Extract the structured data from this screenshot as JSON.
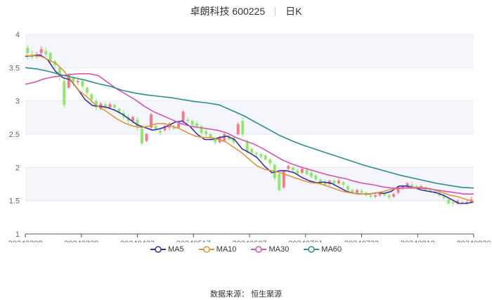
{
  "header": {
    "title": "卓朗科技 600225",
    "period": "日K"
  },
  "source": "数据来源： 恒生聚源",
  "colors": {
    "up": "#f47a85",
    "down": "#8ee86a",
    "ma5": "#3a2fa6",
    "ma10": "#e1933a",
    "ma30": "#d455b2",
    "ma60": "#2f8e8b",
    "grid": "#e6e9f2",
    "band": "#f4f6fb",
    "axis": "#666666"
  },
  "chart_data": {
    "type": "candlestick",
    "y_ticks": [
      "1",
      "1.5",
      "2",
      "2.5",
      "3",
      "3.5",
      "4"
    ],
    "ylim": [
      1,
      4
    ],
    "x_ticks": [
      "20240308",
      "20240329",
      "20240423",
      "20240517",
      "20240607",
      "20240701",
      "20240722",
      "20240812",
      "20240830"
    ],
    "grid": true,
    "legend_placement": "bottom",
    "series": [
      {
        "name": "MA5",
        "values": [
          3.67,
          3.68,
          3.69,
          3.62,
          3.45,
          3.35,
          3.32,
          3.18,
          3.02,
          2.93,
          2.92,
          2.9,
          2.86,
          2.8,
          2.72,
          2.64,
          2.6,
          2.56,
          2.58,
          2.62,
          2.68,
          2.7,
          2.62,
          2.5,
          2.42,
          2.42,
          2.45,
          2.47,
          2.42,
          2.28,
          2.22,
          2.15,
          2.02,
          1.92,
          1.95,
          1.95,
          1.92,
          1.85,
          1.8,
          1.77,
          1.78,
          1.76,
          1.7,
          1.64,
          1.61,
          1.6,
          1.6,
          1.62,
          1.61,
          1.64,
          1.72,
          1.72,
          1.7,
          1.66,
          1.64,
          1.62,
          1.58,
          1.52,
          1.46,
          1.46,
          1.48
        ]
      },
      {
        "name": "MA10",
        "values": [
          3.68,
          3.68,
          3.67,
          3.62,
          3.56,
          3.45,
          3.3,
          3.15,
          3.06,
          2.95,
          2.88,
          2.8,
          2.72,
          2.66,
          2.62,
          2.6,
          2.62,
          2.66,
          2.66,
          2.62,
          2.58,
          2.52,
          2.47,
          2.45,
          2.45,
          2.42,
          2.38,
          2.3,
          2.22,
          2.12,
          2.02,
          1.97,
          1.95,
          1.92,
          1.88,
          1.84,
          1.8,
          1.77,
          1.76,
          1.72,
          1.68,
          1.64,
          1.62,
          1.6,
          1.6,
          1.61,
          1.63,
          1.66,
          1.68,
          1.69,
          1.7,
          1.7,
          1.69,
          1.66,
          1.62,
          1.58,
          1.56,
          1.52,
          1.48
        ]
      },
      {
        "name": "MA30",
        "values": [
          3.25,
          3.28,
          3.33,
          3.36,
          3.38,
          3.4,
          3.41,
          3.41,
          3.38,
          3.28,
          3.18,
          3.1,
          3.02,
          2.92,
          2.84,
          2.78,
          2.72,
          2.66,
          2.62,
          2.6,
          2.58,
          2.56,
          2.52,
          2.45,
          2.4,
          2.35,
          2.28,
          2.2,
          2.12,
          2.06,
          2.01,
          1.97,
          1.93,
          1.89,
          1.86,
          1.83,
          1.79,
          1.76,
          1.74,
          1.71,
          1.69,
          1.69,
          1.69,
          1.69,
          1.68,
          1.66,
          1.64,
          1.62,
          1.6,
          1.6
        ]
      },
      {
        "name": "MA60",
        "values": [
          3.5,
          3.48,
          3.44,
          3.39,
          3.35,
          3.31,
          3.26,
          3.22,
          3.16,
          3.12,
          3.09,
          3.07,
          3.05,
          3.02,
          2.99,
          2.97,
          2.94,
          2.86,
          2.78,
          2.68,
          2.58,
          2.48,
          2.4,
          2.33,
          2.27,
          2.21,
          2.15,
          2.09,
          2.03,
          1.98,
          1.93,
          1.88,
          1.84,
          1.8,
          1.76,
          1.73,
          1.7,
          1.69
        ]
      }
    ],
    "candles": [
      [
        3.8,
        3.72,
        3.84,
        3.62
      ],
      [
        3.7,
        3.66,
        3.76,
        3.62
      ],
      [
        3.68,
        3.7,
        3.74,
        3.64
      ],
      [
        3.72,
        3.78,
        3.82,
        3.66
      ],
      [
        3.75,
        3.7,
        3.8,
        3.66
      ],
      [
        3.72,
        3.62,
        3.74,
        3.58
      ],
      [
        3.6,
        3.54,
        3.62,
        3.48
      ],
      [
        3.5,
        3.36,
        3.52,
        3.3
      ],
      [
        3.3,
        2.94,
        3.34,
        2.9
      ],
      [
        3.2,
        3.4,
        3.42,
        3.18
      ],
      [
        3.35,
        3.28,
        3.38,
        3.22
      ],
      [
        3.28,
        3.3,
        3.34,
        3.24
      ],
      [
        3.3,
        3.22,
        3.34,
        3.18
      ],
      [
        3.2,
        3.12,
        3.22,
        3.08
      ],
      [
        3.1,
        3.02,
        3.12,
        2.98
      ],
      [
        3.0,
        2.9,
        3.04,
        2.86
      ],
      [
        2.88,
        2.96,
        2.98,
        2.86
      ],
      [
        2.95,
        2.9,
        2.98,
        2.86
      ],
      [
        2.9,
        2.95,
        2.98,
        2.88
      ],
      [
        2.94,
        2.9,
        2.96,
        2.86
      ],
      [
        2.88,
        2.82,
        2.9,
        2.8
      ],
      [
        2.82,
        2.76,
        2.86,
        2.72
      ],
      [
        2.76,
        2.7,
        2.8,
        2.66
      ],
      [
        2.7,
        2.76,
        2.78,
        2.66
      ],
      [
        2.72,
        2.6,
        2.76,
        2.56
      ],
      [
        2.58,
        2.36,
        2.62,
        2.33
      ],
      [
        2.4,
        2.5,
        2.52,
        2.38
      ],
      [
        2.6,
        2.8,
        2.82,
        2.56
      ],
      [
        2.62,
        2.58,
        2.66,
        2.54
      ],
      [
        2.55,
        2.52,
        2.6,
        2.48
      ],
      [
        2.56,
        2.62,
        2.64,
        2.54
      ],
      [
        2.6,
        2.66,
        2.68,
        2.56
      ],
      [
        2.62,
        2.58,
        2.64,
        2.56
      ],
      [
        2.6,
        2.66,
        2.68,
        2.58
      ],
      [
        2.7,
        2.84,
        2.86,
        2.66
      ],
      [
        2.72,
        2.7,
        2.76,
        2.66
      ],
      [
        2.7,
        2.64,
        2.72,
        2.6
      ],
      [
        2.66,
        2.62,
        2.7,
        2.58
      ],
      [
        2.62,
        2.52,
        2.64,
        2.48
      ],
      [
        2.55,
        2.5,
        2.58,
        2.46
      ],
      [
        2.5,
        2.44,
        2.52,
        2.4
      ],
      [
        2.44,
        2.38,
        2.46,
        2.34
      ],
      [
        2.38,
        2.46,
        2.48,
        2.36
      ],
      [
        2.4,
        2.5,
        2.52,
        2.38
      ],
      [
        2.48,
        2.42,
        2.52,
        2.4
      ],
      [
        2.45,
        2.38,
        2.48,
        2.34
      ],
      [
        2.5,
        2.65,
        2.68,
        2.48
      ],
      [
        2.7,
        2.5,
        2.76,
        2.46
      ],
      [
        2.4,
        2.24,
        2.42,
        2.2
      ],
      [
        2.28,
        2.22,
        2.3,
        2.2
      ],
      [
        2.22,
        2.2,
        2.24,
        2.16
      ],
      [
        2.2,
        2.16,
        2.22,
        2.12
      ],
      [
        2.18,
        2.12,
        2.2,
        2.1
      ],
      [
        2.12,
        2.06,
        2.14,
        2.02
      ],
      [
        2.04,
        1.84,
        2.06,
        1.8
      ],
      [
        1.9,
        1.66,
        1.92,
        1.64
      ],
      [
        1.7,
        1.94,
        1.96,
        1.68
      ],
      [
        1.98,
        2.02,
        2.04,
        1.94
      ],
      [
        2.0,
        1.96,
        2.02,
        1.92
      ],
      [
        1.95,
        1.9,
        1.98,
        1.88
      ],
      [
        1.92,
        1.98,
        2.02,
        1.9
      ],
      [
        1.96,
        1.9,
        1.98,
        1.88
      ],
      [
        1.92,
        1.86,
        1.96,
        1.84
      ],
      [
        1.88,
        1.82,
        1.9,
        1.8
      ],
      [
        1.82,
        1.76,
        1.84,
        1.74
      ],
      [
        1.78,
        1.74,
        1.82,
        1.72
      ],
      [
        1.75,
        1.8,
        1.82,
        1.72
      ],
      [
        1.8,
        1.76,
        1.82,
        1.72
      ],
      [
        1.76,
        1.8,
        1.84,
        1.74
      ],
      [
        1.78,
        1.74,
        1.8,
        1.7
      ],
      [
        1.72,
        1.66,
        1.74,
        1.64
      ],
      [
        1.66,
        1.62,
        1.68,
        1.6
      ],
      [
        1.62,
        1.66,
        1.68,
        1.6
      ],
      [
        1.65,
        1.62,
        1.68,
        1.6
      ],
      [
        1.62,
        1.58,
        1.64,
        1.56
      ],
      [
        1.58,
        1.56,
        1.6,
        1.54
      ],
      [
        1.56,
        1.58,
        1.62,
        1.54
      ],
      [
        1.58,
        1.6,
        1.64,
        1.56
      ],
      [
        1.6,
        1.58,
        1.62,
        1.56
      ],
      [
        1.58,
        1.55,
        1.6,
        1.52
      ],
      [
        1.56,
        1.6,
        1.62,
        1.54
      ],
      [
        1.62,
        1.7,
        1.72,
        1.6
      ],
      [
        1.7,
        1.72,
        1.74,
        1.66
      ],
      [
        1.72,
        1.76,
        1.78,
        1.7
      ],
      [
        1.74,
        1.72,
        1.78,
        1.7
      ],
      [
        1.72,
        1.7,
        1.74,
        1.68
      ],
      [
        1.7,
        1.72,
        1.74,
        1.68
      ],
      [
        1.7,
        1.66,
        1.72,
        1.64
      ],
      [
        1.66,
        1.64,
        1.68,
        1.62
      ],
      [
        1.64,
        1.62,
        1.66,
        1.6
      ],
      [
        1.62,
        1.58,
        1.64,
        1.56
      ],
      [
        1.58,
        1.54,
        1.6,
        1.52
      ],
      [
        1.52,
        1.46,
        1.54,
        1.44
      ],
      [
        1.48,
        1.46,
        1.5,
        1.42
      ],
      [
        1.46,
        1.5,
        1.52,
        1.44
      ],
      [
        1.48,
        1.46,
        1.5,
        1.44
      ],
      [
        1.46,
        1.48,
        1.5,
        1.44
      ],
      [
        1.47,
        1.52,
        1.56,
        1.46
      ]
    ]
  }
}
